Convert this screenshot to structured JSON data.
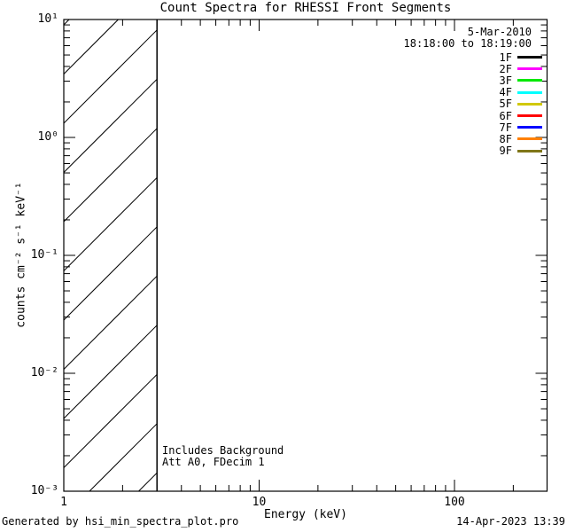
{
  "footer": {
    "generator": "Generated by hsi_min_spectra_plot.pro",
    "timestamp": "14-Apr-2023 13:39"
  },
  "chart_data": {
    "type": "line",
    "title": "Count Spectra for RHESSI Front Segments",
    "xlabel": "Energy (keV)",
    "ylabel": "counts cm⁻² s⁻¹ keV⁻¹",
    "xscale": "log",
    "yscale": "log",
    "xlim": [
      1,
      300
    ],
    "ylim": [
      0.001,
      10
    ],
    "grid": false,
    "x_ticks": {
      "values": [
        1,
        10,
        100
      ],
      "labels": [
        "1",
        "10",
        "100"
      ]
    },
    "y_ticks": {
      "values": [
        10,
        1,
        0.1,
        0.01,
        0.001
      ],
      "labels": [
        "10¹",
        "10⁰",
        "10⁻¹",
        "10⁻²",
        "10⁻³"
      ]
    },
    "header": {
      "date": "5-Mar-2010",
      "time_range": "18:18:00 to 18:19:00"
    },
    "legend_position": "top-right",
    "series": [
      {
        "name": "1F",
        "color": "#000000",
        "values": []
      },
      {
        "name": "2F",
        "color": "#ff00ff",
        "values": []
      },
      {
        "name": "3F",
        "color": "#00e800",
        "values": []
      },
      {
        "name": "4F",
        "color": "#00ffff",
        "values": []
      },
      {
        "name": "5F",
        "color": "#d1c800",
        "values": []
      },
      {
        "name": "6F",
        "color": "#ff0000",
        "values": []
      },
      {
        "name": "7F",
        "color": "#0000ff",
        "values": []
      },
      {
        "name": "8F",
        "color": "#ff8000",
        "values": []
      },
      {
        "name": "9F",
        "color": "#7f7619",
        "values": []
      }
    ],
    "hatched_region": {
      "x_from": 1,
      "x_to": 3,
      "style": "diagonal-hatch"
    },
    "notes": [
      "Includes Background",
      "Att A0, FDecim 1"
    ]
  }
}
